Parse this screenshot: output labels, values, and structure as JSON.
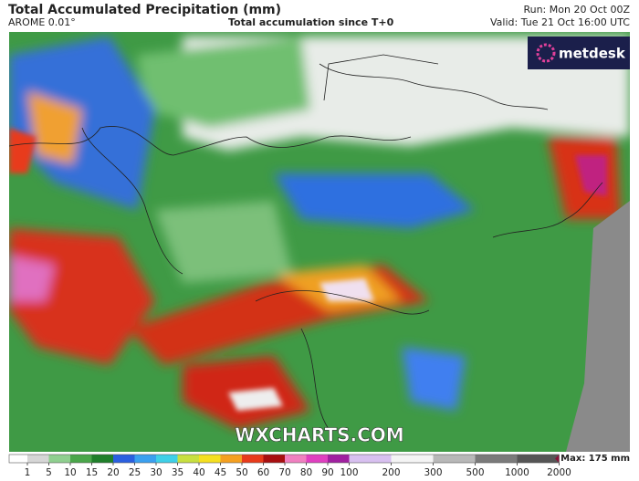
{
  "header": {
    "title": "Total Accumulated Precipitation (mm)",
    "model": "AROME 0.01°",
    "subtitle": "Total accumulation since T+0",
    "run": "Run: Mon 20 Oct 00Z",
    "valid": "Valid: Tue 21 Oct 16:00 UTC"
  },
  "brand": "metdesk",
  "watermark": "WXCHARTS.COM",
  "colorbar": {
    "ticks": [
      1,
      5,
      10,
      15,
      20,
      25,
      30,
      35,
      40,
      45,
      50,
      60,
      70,
      80,
      90,
      100,
      200,
      300,
      500,
      1000,
      2000
    ],
    "colors": [
      "#ffffff",
      "#d6d6d6",
      "#8fcf8f",
      "#4aa64a",
      "#1f7f2a",
      "#2a5fe0",
      "#3aa0f0",
      "#3fd0e8",
      "#c8e040",
      "#f5e020",
      "#f5a020",
      "#e83a1a",
      "#a80f10",
      "#f080c0",
      "#e040c0",
      "#a020a0",
      "#d8c0f0",
      "#f4f4f4",
      "#b8b8b8",
      "#7a7a7a",
      "#555555",
      "#8a1038"
    ],
    "max_label": "Max: 175 mm"
  }
}
